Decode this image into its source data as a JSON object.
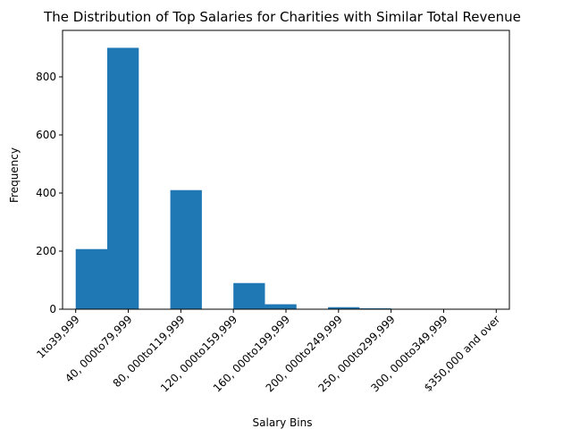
{
  "chart_data": {
    "type": "bar",
    "title": "The Distribution of Top Salaries for Charities with Similar Total Revenue",
    "xlabel": "Salary Bins",
    "ylabel": "Frequency",
    "ylim": [
      0,
      960
    ],
    "y_ticks": [
      0,
      200,
      400,
      600,
      800
    ],
    "x_tick_labels": [
      "1to39,999",
      "40, 000to79,999",
      "80, 000to119,999",
      "120, 000to159,999",
      "160, 000to199,999",
      "200, 000to249,999",
      "250, 000to299,999",
      "300, 000to349,999",
      "$350,000 and over"
    ],
    "bins": [
      {
        "start": 0,
        "end": 0.6,
        "value": 207
      },
      {
        "start": 0.6,
        "end": 1.2,
        "value": 900
      },
      {
        "start": 1.2,
        "end": 1.8,
        "value": 0
      },
      {
        "start": 1.8,
        "end": 2.4,
        "value": 410
      },
      {
        "start": 2.4,
        "end": 3.0,
        "value": 0
      },
      {
        "start": 3.0,
        "end": 3.6,
        "value": 90
      },
      {
        "start": 3.6,
        "end": 4.2,
        "value": 17
      },
      {
        "start": 4.2,
        "end": 4.8,
        "value": 0
      },
      {
        "start": 4.8,
        "end": 5.4,
        "value": 7
      },
      {
        "start": 5.4,
        "end": 6.0,
        "value": 3
      },
      {
        "start": 6.0,
        "end": 6.6,
        "value": 0
      },
      {
        "start": 6.6,
        "end": 7.2,
        "value": 0
      },
      {
        "start": 7.2,
        "end": 7.8,
        "value": 1
      }
    ],
    "grid": false,
    "colors": {
      "bar": "#1f77b4"
    }
  }
}
